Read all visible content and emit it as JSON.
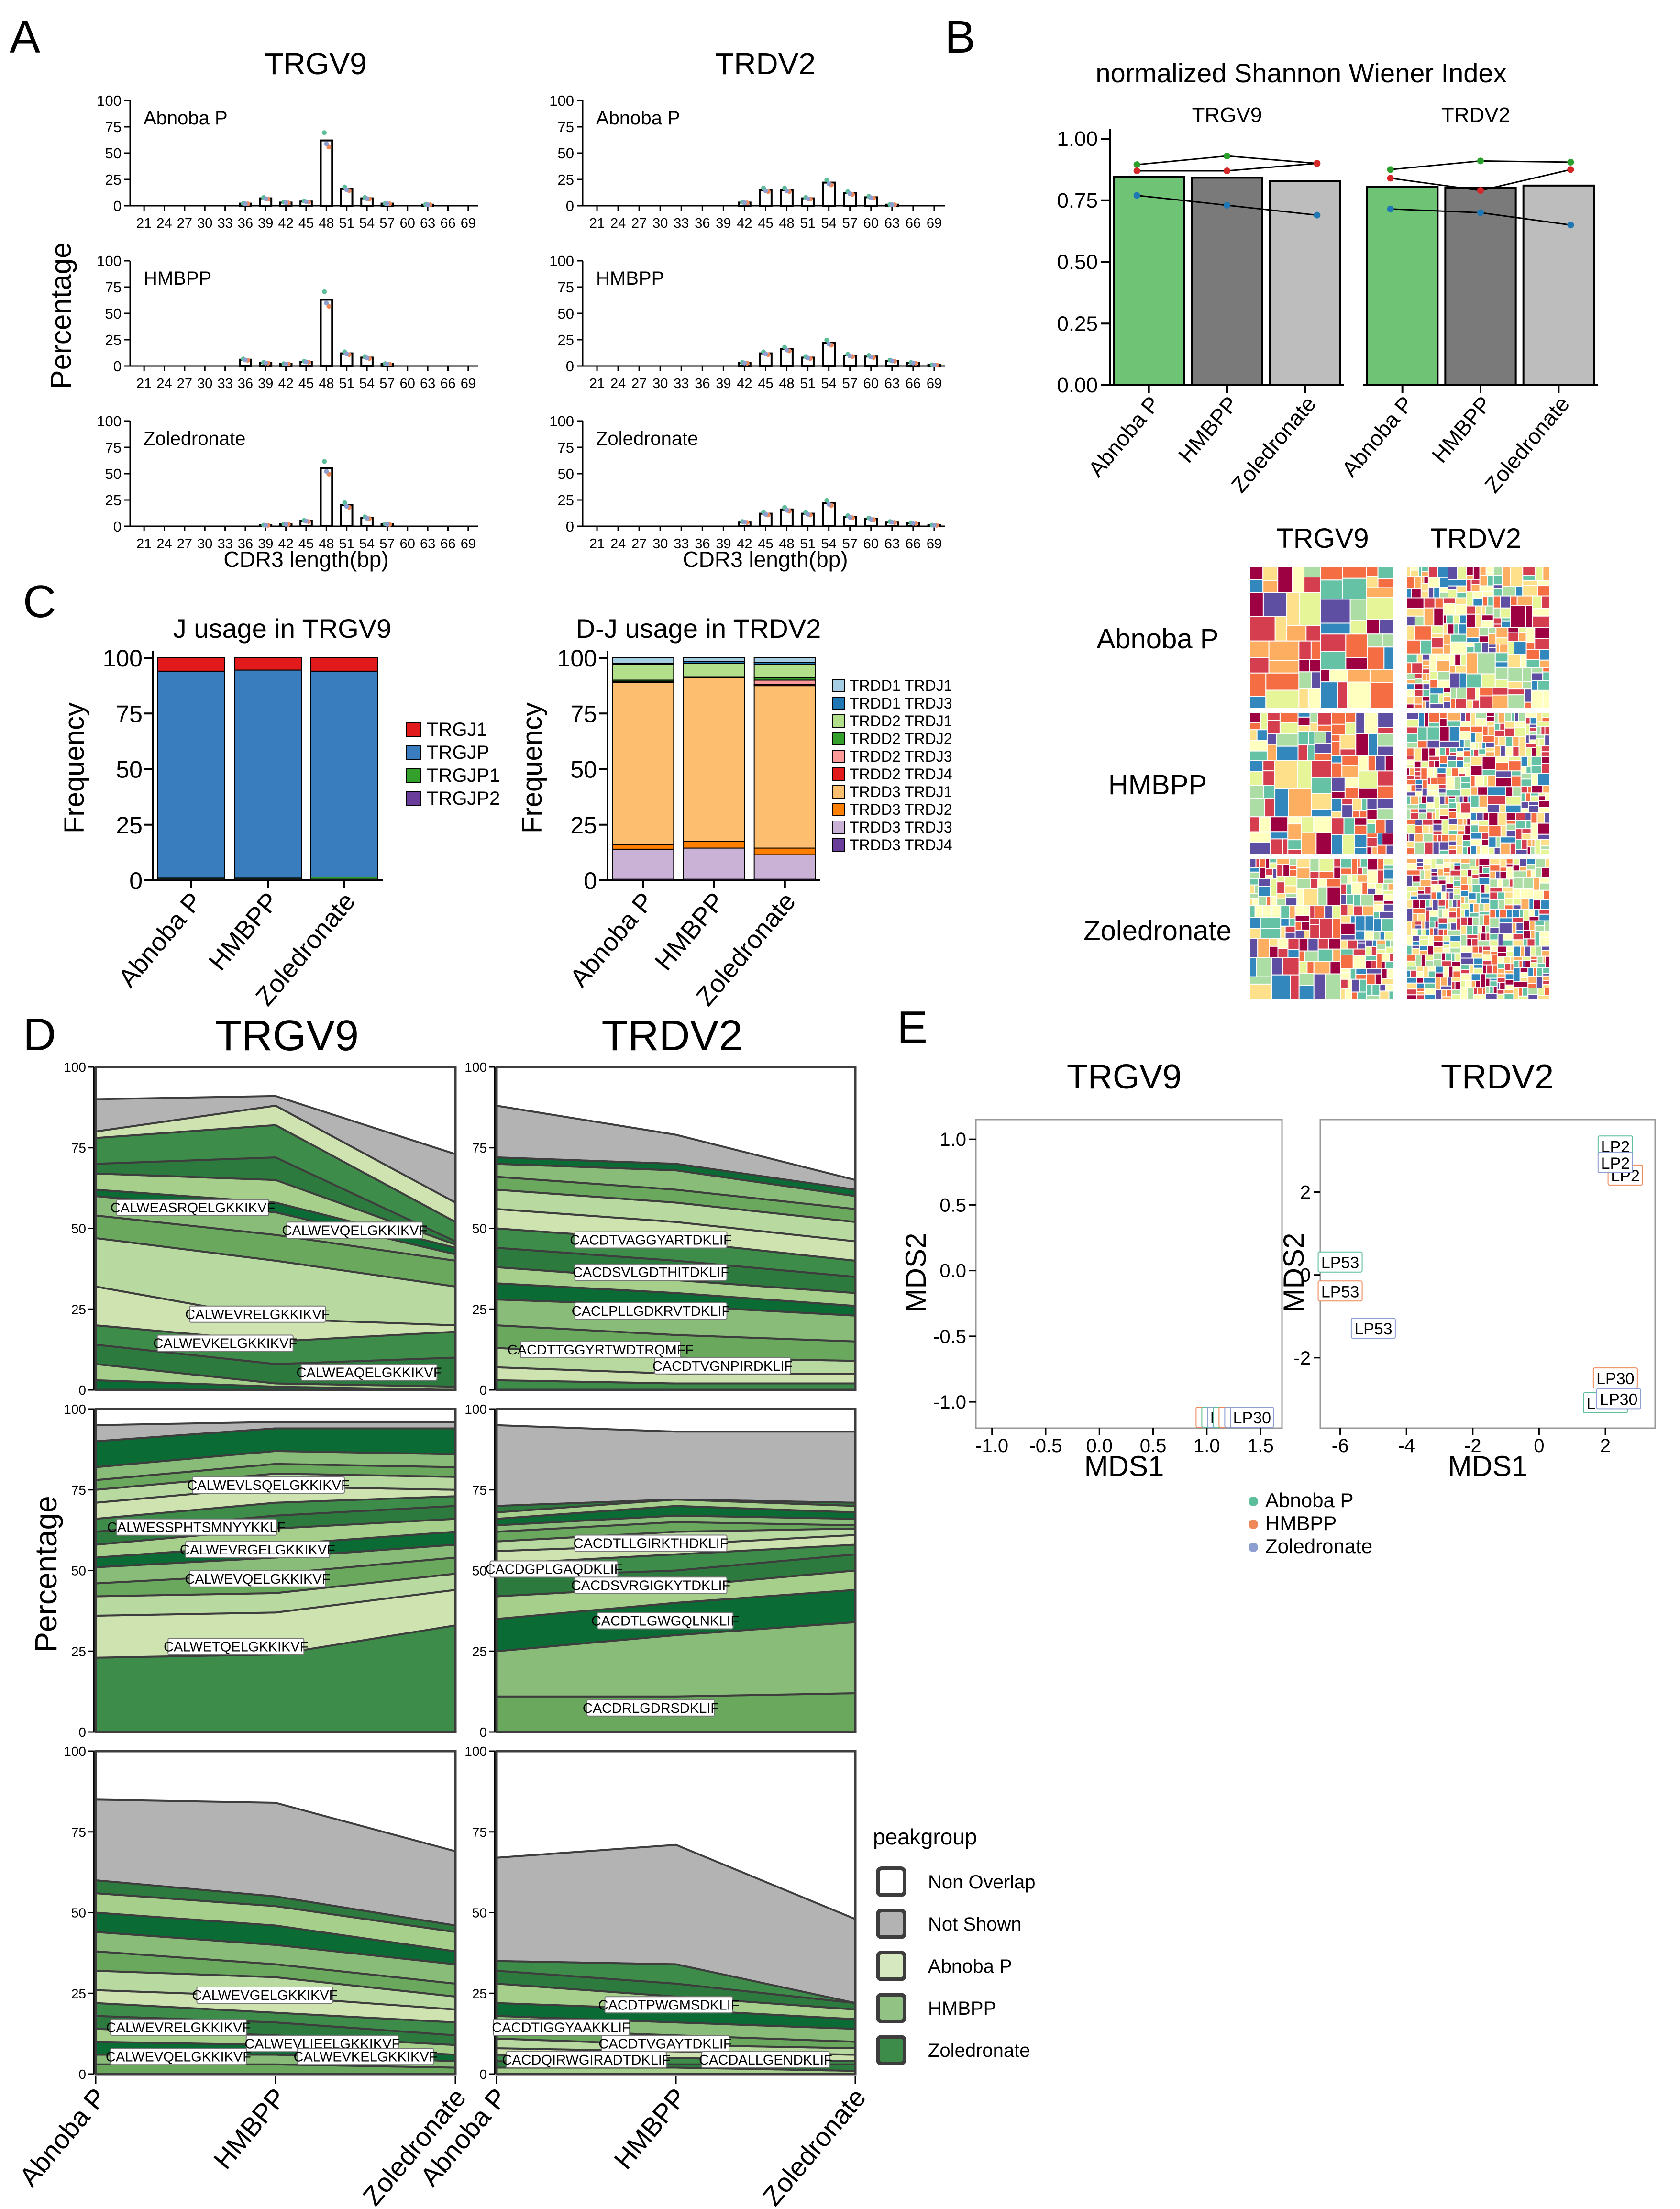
{
  "panelA": {
    "letter": "A",
    "col_titles": [
      "TRGV9",
      "TRDV2"
    ],
    "ylabel": "Percentage",
    "xlabel": "CDR3 length(bp)",
    "yticks": [
      "0",
      "25",
      "50",
      "75",
      "100"
    ],
    "row_labels": [
      "Abnoba P",
      "HMBPP",
      "Zoledronate"
    ]
  },
  "panelB": {
    "letter": "B",
    "title": "normalized Shannon Wiener Index",
    "subtitles": [
      "TRGV9",
      "TRDV2"
    ],
    "yticks": [
      "0.00",
      "0.25",
      "0.50",
      "0.75",
      "1.00"
    ],
    "categories": [
      "Abnoba P",
      "HMBPP",
      "Zoledronate"
    ],
    "treemap_col_titles": [
      "TRGV9",
      "TRDV2"
    ],
    "treemap_row_labels": [
      "Abnoba P",
      "HMBPP",
      "Zoledronate"
    ]
  },
  "panelC": {
    "letter": "C",
    "title_left": "J usage in TRGV9",
    "title_right": "D-J usage in TRDV2",
    "ylabel": "Frequency",
    "yticks": [
      "0",
      "25",
      "50",
      "75",
      "100"
    ],
    "categories": [
      "Abnoba P",
      "HMBPP",
      "Zoledronate"
    ],
    "legend_left": [
      "TRGJ1",
      "TRGJP",
      "TRGJP1",
      "TRGJP2"
    ],
    "legend_right": [
      "TRDD1 TRDJ1",
      "TRDD1 TRDJ3",
      "TRDD2 TRDJ1",
      "TRDD2 TRDJ2",
      "TRDD2 TRDJ3",
      "TRDD2 TRDJ4",
      "TRDD3 TRDJ1",
      "TRDD3 TRDJ2",
      "TRDD3 TRDJ3",
      "TRDD3 TRDJ4"
    ]
  },
  "panelD": {
    "letter": "D",
    "col_titles": [
      "TRGV9",
      "TRDV2"
    ],
    "ylabel": "Percentage",
    "yticks": [
      "0",
      "25",
      "50",
      "75",
      "100"
    ],
    "xcats": [
      "Abnoba P",
      "HMBPP",
      "Zoledronate"
    ],
    "legend_title": "peakgroup",
    "legend_items": [
      "Non Overlap",
      "Not Shown",
      "Abnoba P",
      "HMBPP",
      "Zoledronate"
    ],
    "labels": {
      "r1_left": [
        "CALWEASRQELGKKIKVF",
        "CALWEVQELGKKIKVF",
        "CALWEVRELGKKIKVF",
        "CALWEVKELGKKIKVF",
        "CALWEAQELGKKIKVF"
      ],
      "r1_right": [
        "CACDTVAGGYARTDKLIF",
        "CACDSVLGDTHITDKLIF",
        "CACLPLLGDKRVTDKLIF",
        "CACDTTGGYRTWDTRQMFF",
        "CACDTVGNPIRDKLIF"
      ],
      "r2_left": [
        "CALWEVLSQELGKKIKVF",
        "CALWESSPHTSMNYYKKLF",
        "CALWEVRGELGKKIKVF",
        "CALWEVQELGKKIKVF",
        "CALWETQELGKKIKVF"
      ],
      "r2_right": [
        "CACDTLLGIRKTHDKLIF",
        "CACDGPLGAQDKLIF",
        "CACDSVRGIGKYTDKLIF",
        "CACDTLGWGQLNKLIF",
        "CACDRLGDRSDKLIF"
      ],
      "r3_left": [
        "CALWEVGELGKKIKVF",
        "CALWEVRELGKKIKVF",
        "CALWEVLIEELGKKIKVF",
        "CALWEVQELGKKIKVF",
        "CALWEVKELGKKIKVF"
      ],
      "r3_right": [
        "CACDTPWGMSDKLIF",
        "CACDTIGGYAAKKLIF",
        "CACDTVGAYTDKLIF",
        "CACDQIRWGIRADTDKLIF",
        "CACDALLGENDKLIF"
      ]
    }
  },
  "panelE": {
    "letter": "E",
    "col_titles": [
      "TRGV9",
      "TRDV2"
    ],
    "xlabel": "MDS1",
    "ylabel": "MDS2",
    "left_xticks": [
      "-1.0",
      "-0.5",
      "0.0",
      "0.5",
      "1.0",
      "1.5"
    ],
    "left_yticks": [
      "1.0",
      "0.5",
      "0.0",
      "-0.5",
      "-1.0"
    ],
    "right_xticks": [
      "-6",
      "-4",
      "-2",
      "0",
      "2"
    ],
    "right_yticks": [
      "2",
      "0",
      "-2"
    ],
    "left_point_labels": [
      "I",
      "I",
      "L",
      "I",
      "I",
      "I",
      "LP30"
    ],
    "right_point_labels": [
      "LP2",
      "LP2",
      "LP2",
      "LP53",
      "LP53",
      "LP53",
      "LP30",
      "LP30",
      "LP30"
    ],
    "legend": [
      "Abnoba P",
      "HMBPP",
      "Zoledronate"
    ]
  },
  "colors": {
    "teal": "#5dbf9a",
    "orange": "#f0895a",
    "purple": "#8d9ed1",
    "green_bar": "#6fc374",
    "grey_bar": "#7a7a7a",
    "lightgrey_bar": "#bdbdbd",
    "trgj1": "#e31a1c",
    "trgjp": "#3a7dbf",
    "trgjp1": "#33a02c",
    "trgjp2": "#6a3d9a"
  },
  "chart_data": [
    {
      "id": "A-TRGV9",
      "type": "bar",
      "title": "TRGV9",
      "xlabel": "CDR3 length(bp)",
      "ylabel": "Percentage",
      "ylim": [
        0,
        100
      ],
      "categories": [
        "21",
        "24",
        "27",
        "30",
        "33",
        "36",
        "39",
        "42",
        "45",
        "48",
        "51",
        "54",
        "57",
        "60",
        "63",
        "66",
        "69"
      ],
      "series": [
        {
          "name": "Abnoba P",
          "values": [
            0,
            0,
            0,
            0,
            0,
            2,
            7,
            3,
            4,
            62,
            16,
            7,
            2,
            0,
            1,
            0,
            0
          ]
        },
        {
          "name": "HMBPP",
          "values": [
            0,
            0,
            0,
            0,
            0,
            6,
            3,
            2,
            4,
            63,
            12,
            8,
            2,
            0,
            0,
            0,
            0
          ]
        },
        {
          "name": "Zoledronate",
          "values": [
            0,
            0,
            0,
            0,
            0,
            0,
            1,
            2,
            5,
            55,
            20,
            8,
            2,
            0,
            0,
            0,
            0
          ]
        }
      ]
    },
    {
      "id": "A-TRDV2",
      "type": "bar",
      "title": "TRDV2",
      "xlabel": "CDR3 length(bp)",
      "ylabel": "Percentage",
      "ylim": [
        0,
        100
      ],
      "categories": [
        "21",
        "24",
        "27",
        "30",
        "33",
        "36",
        "39",
        "42",
        "45",
        "48",
        "51",
        "54",
        "57",
        "60",
        "63",
        "66",
        "69"
      ],
      "series": [
        {
          "name": "Abnoba P",
          "values": [
            0,
            0,
            0,
            0,
            0,
            0,
            0,
            3,
            15,
            15,
            7,
            22,
            12,
            8,
            1,
            0,
            0
          ]
        },
        {
          "name": "HMBPP",
          "values": [
            0,
            0,
            0,
            0,
            0,
            0,
            0,
            3,
            12,
            16,
            8,
            22,
            10,
            9,
            5,
            3,
            1
          ]
        },
        {
          "name": "Zoledronate",
          "values": [
            0,
            0,
            0,
            0,
            0,
            0,
            0,
            4,
            12,
            16,
            12,
            22,
            9,
            7,
            4,
            3,
            1
          ]
        }
      ]
    },
    {
      "id": "B-SWI",
      "type": "bar",
      "title": "normalized Shannon Wiener Index",
      "ylim": [
        0,
        1.05
      ],
      "categories": [
        "Abnoba P",
        "HMBPP",
        "Zoledronate"
      ],
      "series": [
        {
          "name": "TRGV9",
          "values": [
            0.845,
            0.842,
            0.828
          ],
          "points": [
            [
              0.895,
              0.93,
              0.9
            ],
            [
              0.87,
              0.87,
              0.9
            ],
            [
              0.77,
              0.73,
              0.69
            ]
          ]
        },
        {
          "name": "TRDV2",
          "values": [
            0.805,
            0.8,
            0.81
          ],
          "points": [
            [
              0.875,
              0.91,
              0.905
            ],
            [
              0.84,
              0.79,
              0.875
            ],
            [
              0.715,
              0.7,
              0.65
            ]
          ]
        }
      ]
    },
    {
      "id": "C-TRGV9",
      "type": "bar",
      "title": "J usage in TRGV9",
      "ylabel": "Frequency",
      "ylim": [
        0,
        100
      ],
      "categories": [
        "Abnoba P",
        "HMBPP",
        "Zoledronate"
      ],
      "series": [
        {
          "name": "TRGJP2",
          "values": [
            0.5,
            0.5,
            0.5
          ]
        },
        {
          "name": "TRGJP1",
          "values": [
            0.5,
            0.5,
            1.0
          ]
        },
        {
          "name": "TRGJP",
          "values": [
            93,
            93.5,
            92.5
          ]
        },
        {
          "name": "TRGJ1",
          "values": [
            6,
            5.5,
            6
          ]
        }
      ]
    },
    {
      "id": "C-TRDV2",
      "type": "bar",
      "title": "D-J usage in TRDV2",
      "ylabel": "Frequency",
      "ylim": [
        0,
        100
      ],
      "categories": [
        "Abnoba P",
        "HMBPP",
        "Zoledronate"
      ],
      "series": [
        {
          "name": "TRDD3 TRDJ4",
          "values": [
            0.5,
            0.5,
            0.5
          ]
        },
        {
          "name": "TRDD3 TRDJ3",
          "values": [
            13.5,
            14,
            11
          ]
        },
        {
          "name": "TRDD3 TRDJ2",
          "values": [
            2,
            3,
            3
          ]
        },
        {
          "name": "TRDD3 TRDJ1",
          "values": [
            73,
            73.5,
            73
          ]
        },
        {
          "name": "TRDD2 TRDJ4",
          "values": [
            0.5,
            0.5,
            0.5
          ]
        },
        {
          "name": "TRDD2 TRDJ3",
          "values": [
            0,
            0,
            2
          ]
        },
        {
          "name": "TRDD2 TRDJ2",
          "values": [
            0.5,
            0,
            1
          ]
        },
        {
          "name": "TRDD2 TRDJ1",
          "values": [
            7,
            6,
            6
          ]
        },
        {
          "name": "TRDD1 TRDJ3",
          "values": [
            0.5,
            1,
            1
          ]
        },
        {
          "name": "TRDD1 TRDJ1",
          "values": [
            2.5,
            1.5,
            2
          ]
        }
      ]
    },
    {
      "id": "E-MDS",
      "type": "scatter",
      "xlabel": "MDS1",
      "ylabel": "MDS2",
      "series": [
        {
          "name": "TRDV2 Abnoba P",
          "points": [
            [
              2.3,
              3.1
            ],
            [
              -6,
              0.3
            ],
            [
              2.0,
              -3.1
            ]
          ]
        },
        {
          "name": "TRDV2 HMBPP",
          "points": [
            [
              2.6,
              2.4
            ],
            [
              -6,
              -0.4
            ],
            [
              2.3,
              -2.5
            ]
          ]
        },
        {
          "name": "TRDV2 Zoledronate",
          "points": [
            [
              2.3,
              2.7
            ],
            [
              -5,
              -1.3
            ],
            [
              2.4,
              -3.0
            ]
          ]
        }
      ]
    }
  ]
}
